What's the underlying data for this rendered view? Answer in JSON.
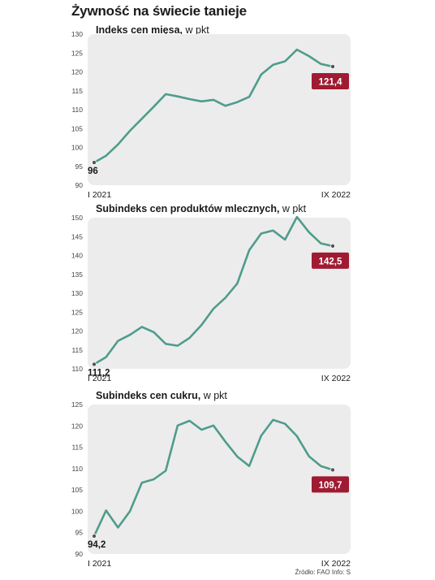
{
  "title": "Żywność na świecie tanieje",
  "source": "Źródło: FAO  Info: S",
  "colors": {
    "line": "#4f9c8c",
    "badge": "#9e1b32",
    "plot_bg": "#ececec"
  },
  "chart_data": [
    {
      "type": "line",
      "title": "Indeks cen mięsa,",
      "unit": "w pkt",
      "x_start_label": "I 2021",
      "x_end_label": "IX 2022",
      "ylim": [
        90,
        130
      ],
      "yticks": [
        90,
        95,
        100,
        105,
        110,
        115,
        120,
        125,
        130
      ],
      "values": [
        96,
        97.8,
        100.8,
        104.4,
        107.6,
        110.8,
        114.1,
        113.5,
        112.8,
        112.2,
        112.6,
        111.0,
        112.0,
        113.4,
        119.3,
        121.9,
        122.8,
        125.9,
        124.2,
        122.1,
        121.4
      ],
      "start_label": "96",
      "end_label": "121,4",
      "grid": false
    },
    {
      "type": "line",
      "title": "Subindeks cen produktów mlecznych,",
      "unit": "w pkt",
      "x_start_label": "I 2021",
      "x_end_label": "IX 2022",
      "ylim": [
        110,
        150
      ],
      "yticks": [
        110,
        115,
        120,
        125,
        130,
        135,
        140,
        145,
        150
      ],
      "values": [
        111.2,
        113.1,
        117.4,
        119.0,
        121.1,
        119.7,
        116.6,
        116.1,
        118.2,
        121.6,
        125.9,
        128.8,
        132.6,
        141.4,
        145.8,
        146.6,
        144.2,
        150.2,
        146.2,
        143.2,
        142.5
      ],
      "start_label": "111,2",
      "end_label": "142,5",
      "grid": false
    },
    {
      "type": "line",
      "title": "Subindeks cen cukru,",
      "unit": "w pkt",
      "x_start_label": "I 2021",
      "x_end_label": "IX 2022",
      "ylim": [
        90,
        125
      ],
      "yticks": [
        90,
        95,
        100,
        105,
        110,
        115,
        120,
        125
      ],
      "values": [
        94.2,
        100.2,
        96.2,
        100.0,
        106.7,
        107.5,
        109.5,
        120.1,
        121.2,
        119.1,
        120.1,
        116.3,
        112.8,
        110.6,
        117.7,
        121.4,
        120.5,
        117.6,
        112.9,
        110.6,
        109.7
      ],
      "start_label": "94,2",
      "end_label": "109,7",
      "grid": false
    }
  ]
}
